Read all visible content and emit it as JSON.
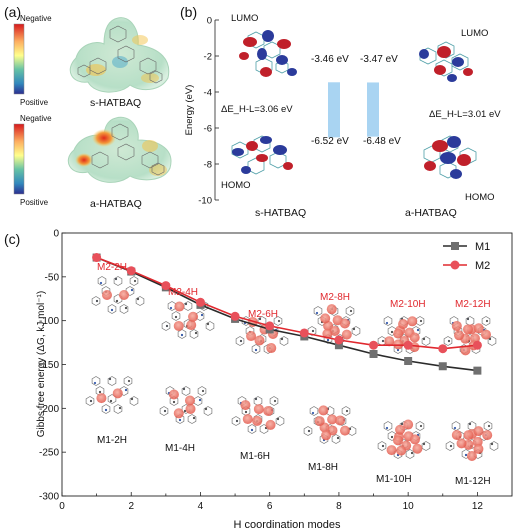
{
  "panel_a": {
    "label": "(a)",
    "legend_top": "Negative",
    "legend_bottom": "Positive",
    "molecules": [
      "s-HATBAQ",
      "a-HATBAQ"
    ],
    "colorbar_stops": [
      "#d7191c",
      "#fdae61",
      "#ffff8c",
      "#66c2a5",
      "#3288bd",
      "#2b2d8f"
    ]
  },
  "panel_b": {
    "label": "(b)",
    "ylabel": "Energy (eV)",
    "s_lumo_label": "LUMO",
    "s_homo_label": "HOMO",
    "a_lumo_label": "LUMO",
    "a_homo_label": "HOMO",
    "s_gap": "ΔE_H-L=3.06 eV",
    "a_gap": "ΔE_H-L=3.01 eV",
    "s_name": "s-HATBAQ",
    "a_name": "a-HATBAQ",
    "s_lumo_ev": "-3.46 eV",
    "a_lumo_ev": "-3.47 eV",
    "s_homo_ev": "-6.52 eV",
    "a_homo_ev": "-6.48 eV"
  },
  "panel_c": {
    "label": "(c)",
    "m2_structs": [
      "M2-2H",
      "M2-4H",
      "M2-6H",
      "M2-8H",
      "M2-10H",
      "M2-12H"
    ],
    "m1_structs": [
      "M1-2H",
      "M1-4H",
      "M1-6H",
      "M1-8H",
      "M1-10H",
      "M1-12H"
    ]
  },
  "chart_data": [
    {
      "type": "bar",
      "panel": "b",
      "ylabel": "Energy (eV)",
      "ylim": [
        -10,
        0
      ],
      "yticks": [
        0,
        -2,
        -4,
        -6,
        -8,
        -10
      ],
      "bars": [
        {
          "name": "s-HATBAQ",
          "lumo": -3.46,
          "homo": -6.52
        },
        {
          "name": "a-HATBAQ",
          "lumo": -3.47,
          "homo": -6.48
        }
      ]
    },
    {
      "type": "line",
      "panel": "c",
      "xlabel": "H coordination modes",
      "ylabel": "Gibbs free energy (ΔG, kJ mol⁻¹)",
      "xlim": [
        0,
        13
      ],
      "ylim": [
        -300,
        0
      ],
      "xticks": [
        0,
        2,
        4,
        6,
        8,
        10,
        12
      ],
      "yticks": [
        0,
        -50,
        -100,
        -150,
        -200,
        -250,
        -300
      ],
      "legend_position": "top-right",
      "series": [
        {
          "name": "M1",
          "color": "#2b2b2b",
          "marker": "square",
          "x": [
            1,
            2,
            3,
            4,
            5,
            6,
            7,
            8,
            9,
            10,
            11,
            12
          ],
          "y": [
            -28,
            -44,
            -62,
            -82,
            -98,
            -110,
            -118,
            -128,
            -138,
            -146,
            -152,
            -157
          ]
        },
        {
          "name": "M2",
          "color": "#e0282e",
          "marker": "circle",
          "x": [
            1,
            2,
            3,
            4,
            5,
            6,
            7,
            8,
            9,
            10,
            11,
            12
          ],
          "y": [
            -28,
            -43,
            -60,
            -79,
            -95,
            -106,
            -114,
            -122,
            -128,
            -128,
            -132,
            -128
          ]
        }
      ]
    }
  ]
}
